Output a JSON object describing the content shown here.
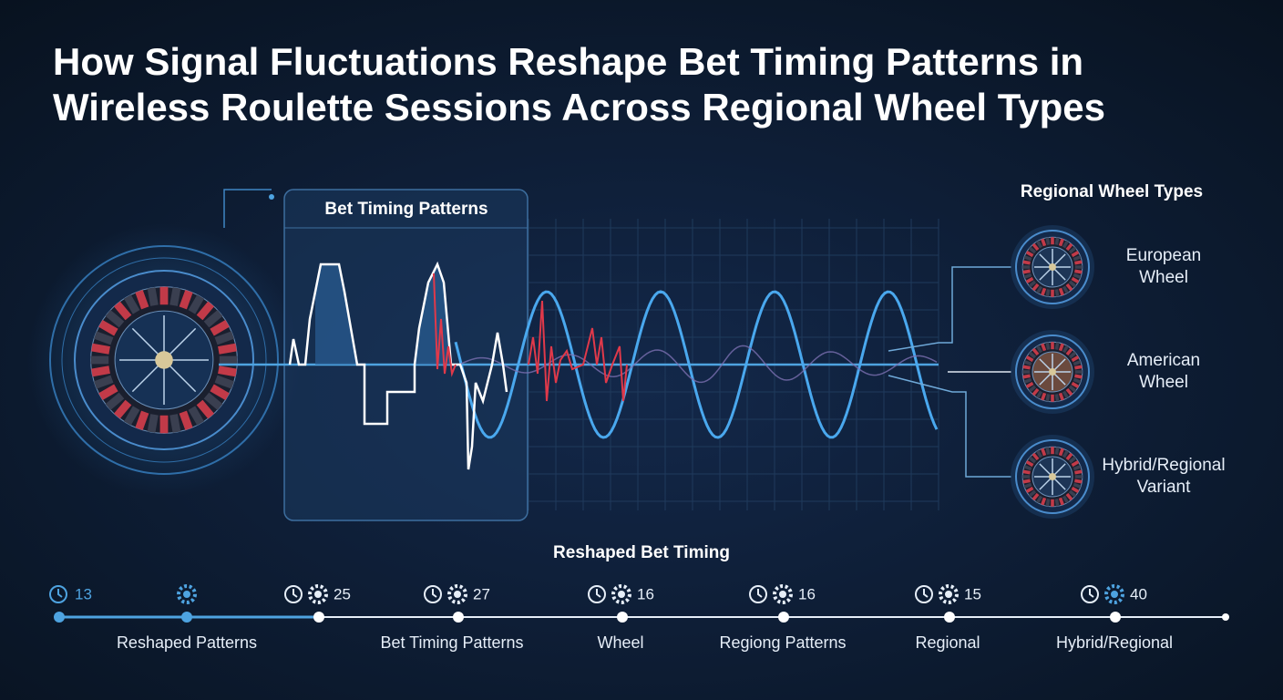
{
  "title_lines": [
    "How Signal Fluctuations Reshape Bet Timing Patterns in",
    "Wireless Roulette Sessions Across Regional Wheel Types"
  ],
  "panel": {
    "title": "Bet Timing Patterns"
  },
  "wheel_types": {
    "title": "Regional Wheel Types",
    "items": [
      [
        "European",
        "Wheel"
      ],
      [
        "American",
        "Wheel"
      ],
      [
        "Hybrid/Regional",
        "Variant"
      ]
    ]
  },
  "timeline": {
    "title": "Reshaped Bet Timing",
    "markers": [
      13,
      25,
      27,
      16,
      16,
      15,
      40
    ],
    "labels": [
      "Reshaped Patterns",
      "Bet Timing Patterns",
      "Wheel",
      "Regiong Patterns",
      "Regional",
      "Hybrid/Regional"
    ]
  }
}
